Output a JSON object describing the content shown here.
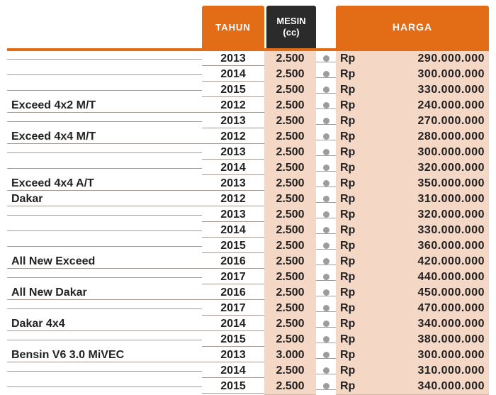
{
  "headers": {
    "tahun": "TAHUN",
    "mesin": "MESIN\n(cc)",
    "harga": "HARGA"
  },
  "currency": "Rp",
  "colors": {
    "header_orange": "#e36c17",
    "header_black": "#2b2b2b",
    "shade": "#f5d7c6",
    "rule": "#a59a93",
    "dot": "#9c9c9c",
    "text": "#222222"
  },
  "rows": [
    {
      "model": "",
      "tahun": "2013",
      "mesin": "2.500",
      "harga": "290.000.000"
    },
    {
      "model": "",
      "tahun": "2014",
      "mesin": "2.500",
      "harga": "300.000.000"
    },
    {
      "model": "",
      "tahun": "2015",
      "mesin": "2.500",
      "harga": "330.000.000"
    },
    {
      "model": "Exceed 4x2 M/T",
      "tahun": "2012",
      "mesin": "2.500",
      "harga": "240.000.000"
    },
    {
      "model": "",
      "tahun": "2013",
      "mesin": "2.500",
      "harga": "270.000.000"
    },
    {
      "model": "Exceed 4x4 M/T",
      "tahun": "2012",
      "mesin": "2.500",
      "harga": "280.000.000"
    },
    {
      "model": "",
      "tahun": "2013",
      "mesin": "2.500",
      "harga": "300.000.000"
    },
    {
      "model": "",
      "tahun": "2014",
      "mesin": "2.500",
      "harga": "320.000.000"
    },
    {
      "model": "Exceed 4x4 A/T",
      "tahun": "2013",
      "mesin": "2.500",
      "harga": "350.000.000"
    },
    {
      "model": "Dakar",
      "tahun": "2012",
      "mesin": "2.500",
      "harga": "310.000.000"
    },
    {
      "model": "",
      "tahun": "2013",
      "mesin": "2.500",
      "harga": "320.000.000"
    },
    {
      "model": "",
      "tahun": "2014",
      "mesin": "2.500",
      "harga": "330.000.000"
    },
    {
      "model": "",
      "tahun": "2015",
      "mesin": "2.500",
      "harga": "360.000.000"
    },
    {
      "model": "All New Exceed",
      "tahun": "2016",
      "mesin": "2.500",
      "harga": "420.000.000"
    },
    {
      "model": "",
      "tahun": "2017",
      "mesin": "2.500",
      "harga": "440.000.000"
    },
    {
      "model": "All New Dakar",
      "tahun": "2016",
      "mesin": "2.500",
      "harga": "450.000.000"
    },
    {
      "model": "",
      "tahun": "2017",
      "mesin": "2.500",
      "harga": "470.000.000"
    },
    {
      "model": "Dakar 4x4",
      "tahun": "2014",
      "mesin": "2.500",
      "harga": "340.000.000"
    },
    {
      "model": "",
      "tahun": "2015",
      "mesin": "2.500",
      "harga": "380.000.000"
    },
    {
      "model": "Bensin V6 3.0 MiVEC",
      "tahun": "2013",
      "mesin": "3.000",
      "harga": "300.000.000"
    },
    {
      "model": "",
      "tahun": "2014",
      "mesin": "2.500",
      "harga": "310.000.000"
    },
    {
      "model": "",
      "tahun": "2015",
      "mesin": "2.500",
      "harga": "340.000.000"
    }
  ]
}
